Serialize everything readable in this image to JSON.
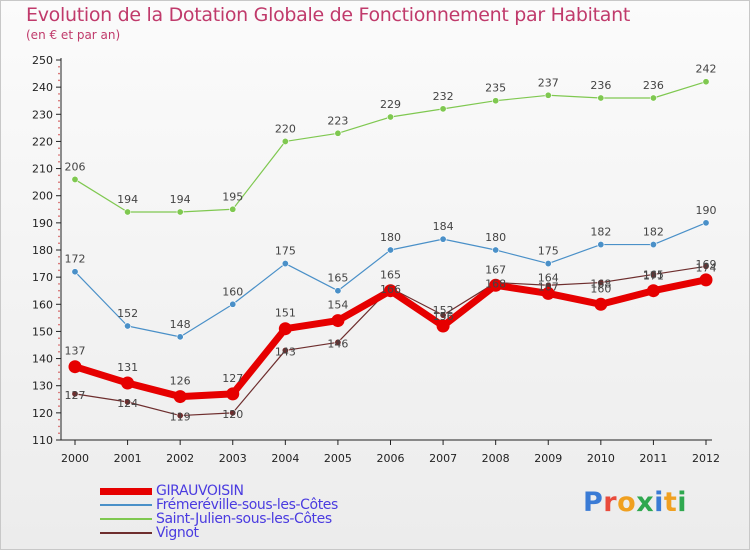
{
  "title": "Evolution de la Dotation Globale de Fonctionnement par Habitant",
  "subtitle": "(en € et par an)",
  "brand": {
    "text": "Proxiti",
    "letter_colors": [
      "#3a7bd5",
      "#e94b3c",
      "#f0a020",
      "#2fa84f",
      "#3a7bd5",
      "#f0a020",
      "#2fa84f"
    ]
  },
  "chart_data": {
    "type": "line",
    "x": [
      "2000",
      "2001",
      "2002",
      "2003",
      "2004",
      "2005",
      "2006",
      "2007",
      "2008",
      "2009",
      "2010",
      "2011",
      "2012"
    ],
    "ylim": [
      110,
      250
    ],
    "y_ticks": [
      110,
      120,
      130,
      140,
      150,
      160,
      170,
      180,
      190,
      200,
      210,
      220,
      230,
      240,
      250
    ],
    "grid": false,
    "legend_position": "bottom-left",
    "series": [
      {
        "name": "GIRAUVOISIN",
        "color": "#e60000",
        "values": [
          137,
          131,
          126,
          127,
          151,
          154,
          165,
          152,
          167,
          164,
          160,
          165,
          169
        ]
      },
      {
        "name": "Frémeréville-sous-les-Côtes",
        "color": "#4a90c8",
        "values": [
          172,
          152,
          148,
          160,
          175,
          165,
          180,
          184,
          180,
          175,
          182,
          182,
          190
        ]
      },
      {
        "name": "Saint-Julien-sous-les-Côtes",
        "color": "#7fc850",
        "values": [
          206,
          194,
          194,
          195,
          220,
          223,
          229,
          232,
          235,
          237,
          236,
          236,
          242
        ]
      },
      {
        "name": "Vignot",
        "color": "#6e2e2e",
        "values": [
          127,
          124,
          119,
          120,
          143,
          146,
          166,
          156,
          168,
          167,
          168,
          171,
          174
        ]
      }
    ]
  }
}
